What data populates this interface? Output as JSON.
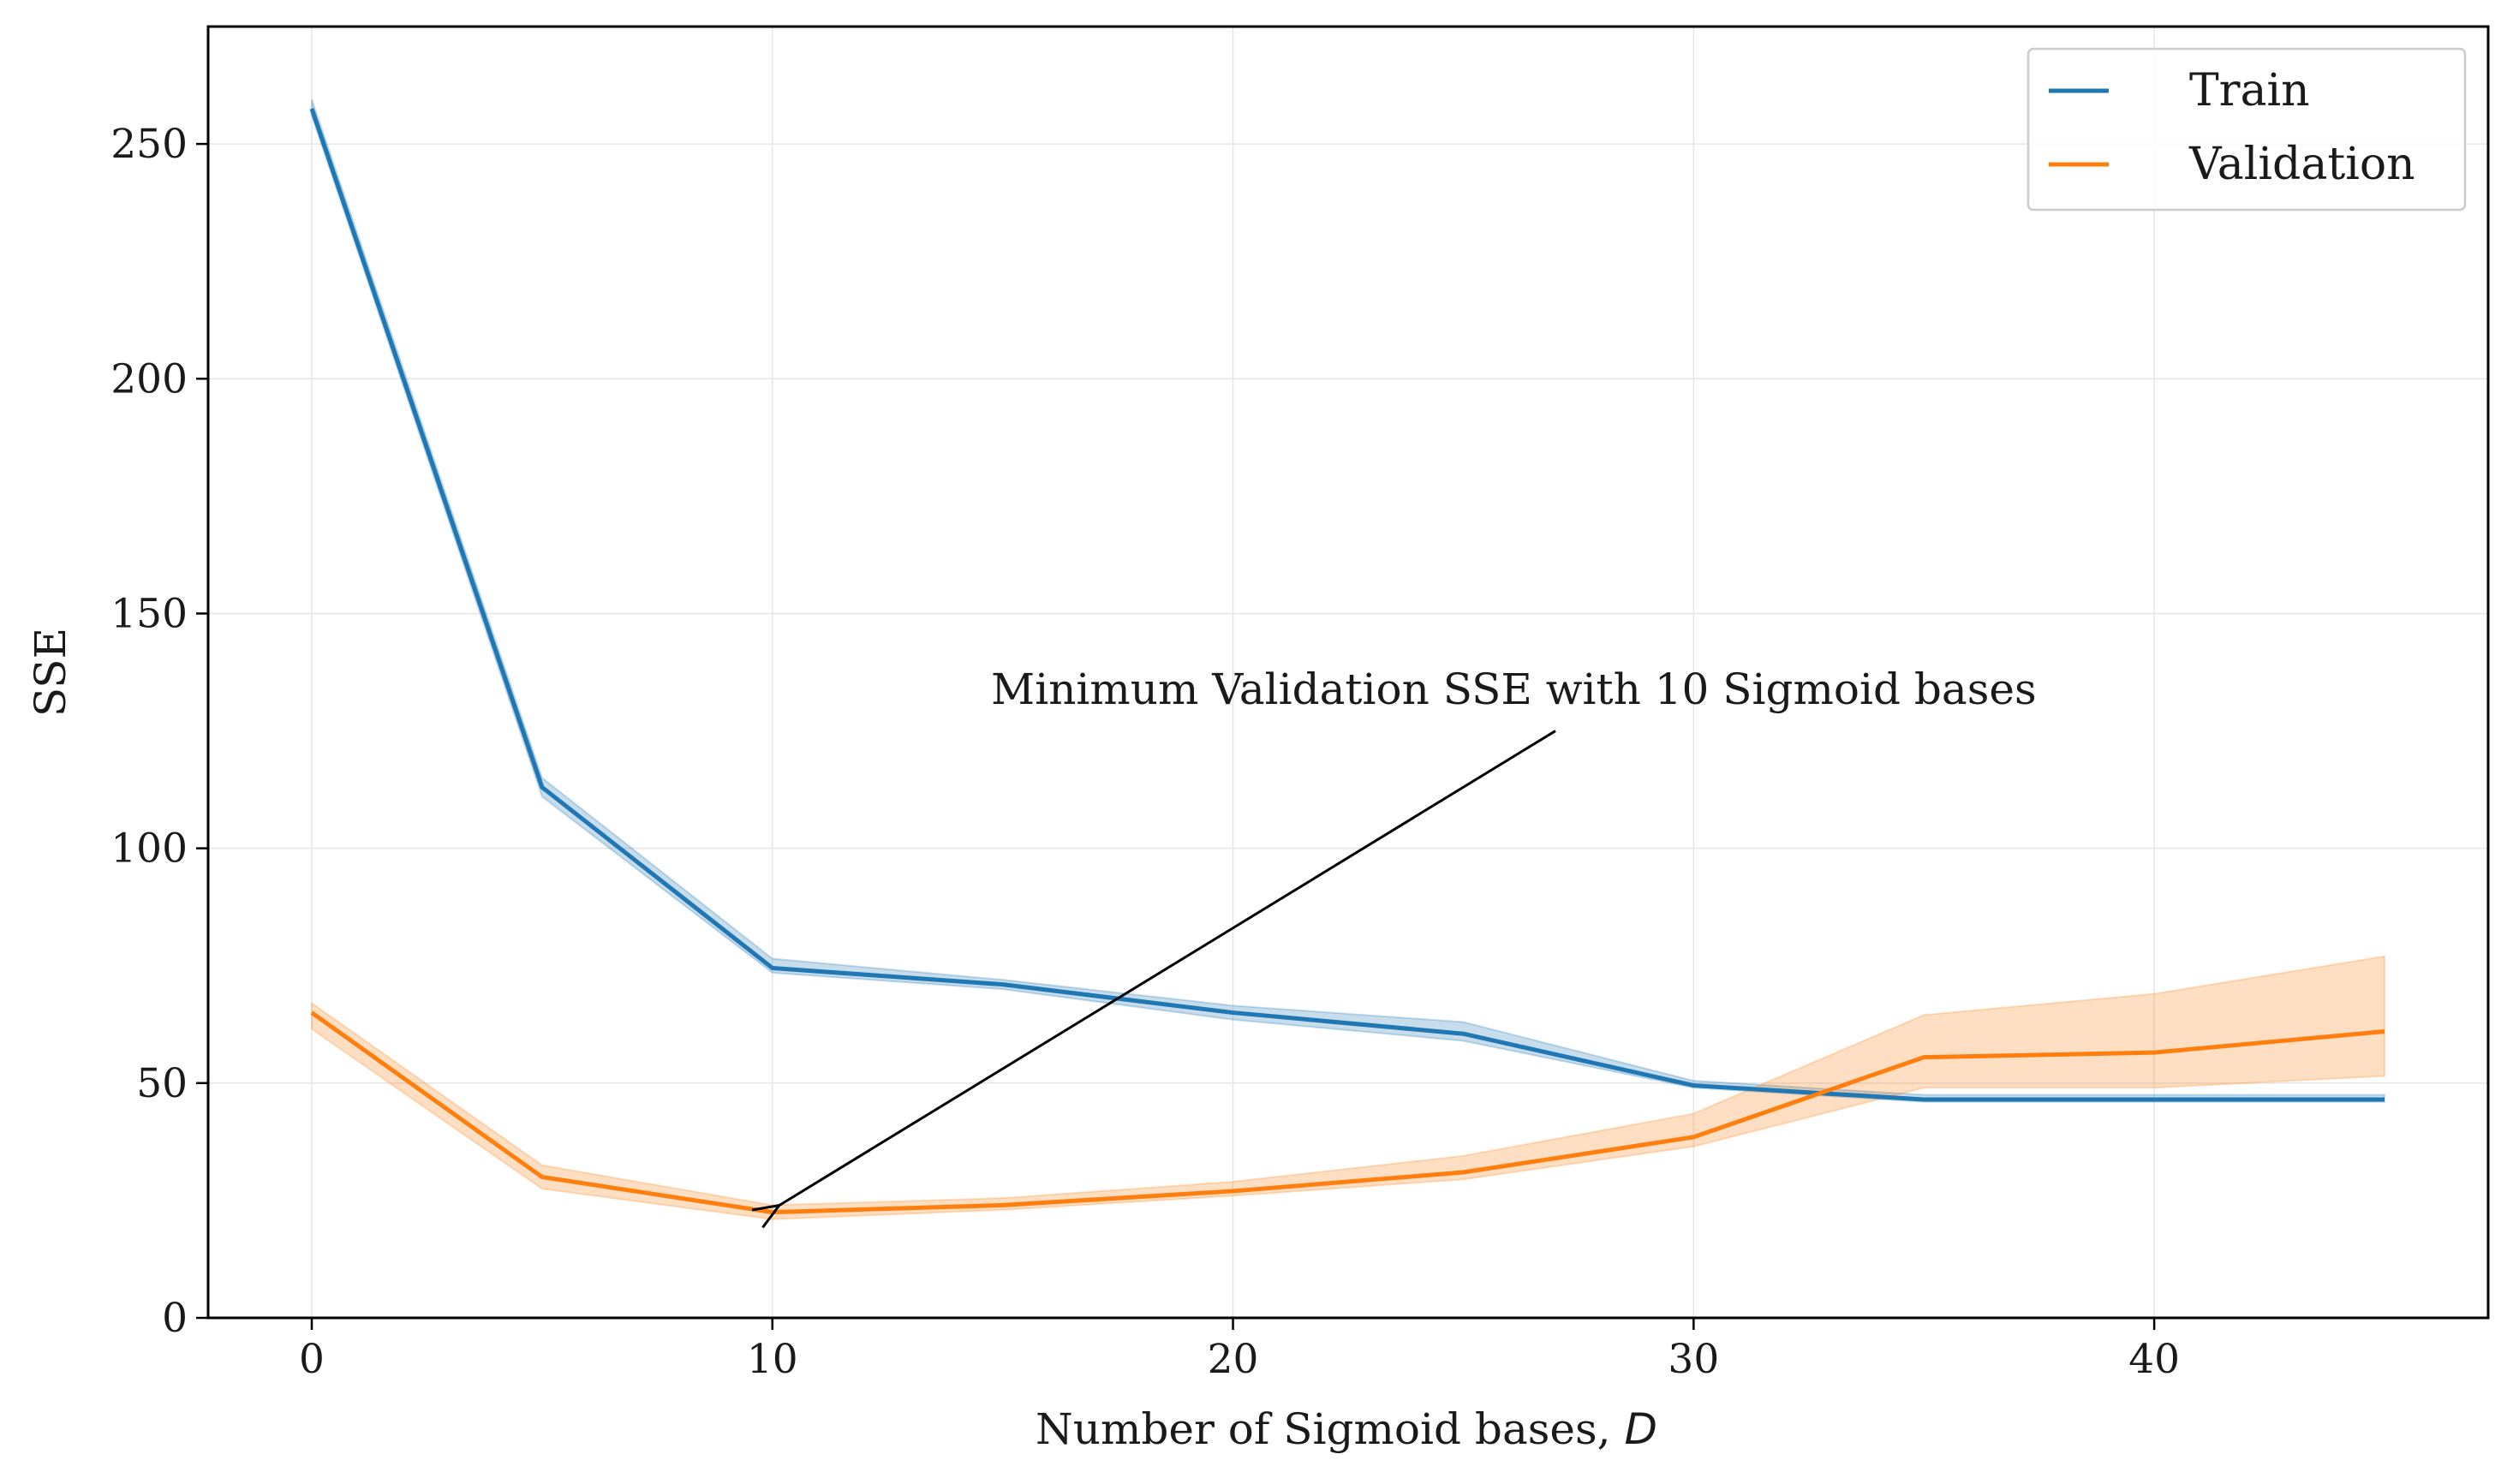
{
  "chart_data": {
    "type": "line",
    "xlabel": "Number of Sigmoid bases, ",
    "xlabel_var": "D",
    "ylabel": "SSE",
    "xlim": [
      -2.25,
      47.25
    ],
    "ylim": [
      0,
      275
    ],
    "xticks": [
      0,
      10,
      20,
      30,
      40
    ],
    "yticks": [
      0,
      50,
      100,
      150,
      200,
      250
    ],
    "grid": true,
    "legend_position": "top-right",
    "x": [
      0,
      5,
      10,
      15,
      20,
      25,
      30,
      35,
      40,
      45
    ],
    "series": [
      {
        "name": "Train",
        "color": "#1f77b4",
        "values": [
          257.5,
          113,
          74.5,
          71,
          65,
          60.5,
          49.5,
          46.5,
          46.5,
          46.5
        ],
        "band_low": [
          256,
          111,
          73.5,
          70,
          63.5,
          59,
          49,
          46,
          46,
          46
        ],
        "band_high": [
          259.5,
          115,
          76.5,
          72,
          66.5,
          63,
          50.5,
          47.5,
          47.5,
          47.5
        ]
      },
      {
        "name": "Validation",
        "color": "#ff7f0e",
        "values": [
          65,
          30,
          22.5,
          24,
          27,
          31,
          38.5,
          55.5,
          56.5,
          61
        ],
        "band_low": [
          61.5,
          27.5,
          21,
          23,
          26,
          29.5,
          36.5,
          49,
          49,
          51.5
        ],
        "band_high": [
          67,
          32.5,
          24,
          25.5,
          29,
          34.5,
          43.5,
          64.5,
          69,
          77
        ]
      }
    ],
    "annotation": {
      "text": "Minimum Validation SSE with 10 Sigmoid bases",
      "point": [
        10,
        22.5
      ],
      "text_anchor_point": [
        27,
        125
      ]
    }
  }
}
